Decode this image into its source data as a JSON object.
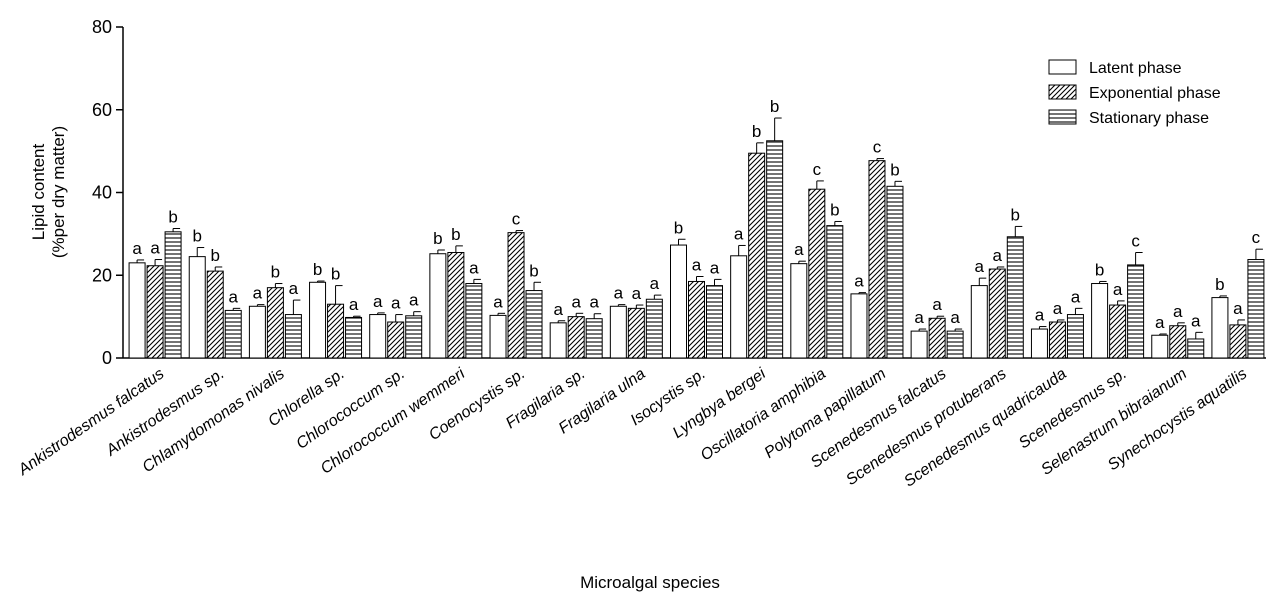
{
  "chart_data": {
    "type": "bar",
    "ylabel_line1": "Lipid content",
    "ylabel_line2": "(%per dry matter)",
    "xlabel": "Microalgal species",
    "ylim": [
      0,
      80
    ],
    "yticks": [
      "0",
      "20",
      "40",
      "60",
      "80"
    ],
    "legend_position": "top-right",
    "categories": [
      "Ankistrodesmus falcatus",
      "Ankistrodesmus  sp.",
      "Chlamydomonas nivalis",
      "Chlorella  sp.",
      "Chlorococcum  sp.",
      "Chlorococcum wemmeri",
      "Coenocystis  sp.",
      "Fragilaria  sp.",
      "Fragilaria ulna",
      "Isocystis  sp.",
      "Lyngbya bergei",
      "Oscillatoria amphibia",
      "Polytoma papillatum",
      "Scenedesmus falcatus",
      "Scenedesmus protuberans",
      "Scenedesmus quadricauda",
      "Scenedesmus  sp.",
      "Selenastrum bibraianum",
      "Synechocystis aquatilis"
    ],
    "series": [
      {
        "name": "Latent phase",
        "pattern": "blank",
        "values": [
          23.0,
          24.5,
          12.5,
          18.3,
          10.5,
          25.2,
          10.3,
          8.5,
          12.5,
          27.3,
          24.7,
          22.8,
          15.5,
          6.5,
          17.5,
          7.0,
          18.0,
          5.5,
          14.6
        ],
        "errors": [
          0.7,
          2.2,
          0.4,
          0.3,
          0.4,
          0.9,
          0.5,
          0.5,
          0.4,
          1.4,
          2.5,
          0.6,
          0.3,
          0.5,
          1.8,
          0.6,
          0.5,
          0.3,
          0.4
        ],
        "letters": [
          "a",
          "b",
          "a",
          "b",
          "a",
          "b",
          "a",
          "a",
          "a",
          "b",
          "a",
          "a",
          "a",
          "a",
          "a",
          "a",
          "b",
          "a",
          "b"
        ]
      },
      {
        "name": "Exponential phase",
        "pattern": "diagonal",
        "values": [
          22.3,
          21.0,
          17.0,
          13.0,
          8.7,
          25.5,
          30.3,
          10.0,
          12.0,
          18.5,
          49.5,
          40.8,
          47.7,
          9.6,
          21.5,
          8.7,
          12.8,
          7.8,
          8.0
        ],
        "errors": [
          1.5,
          1.0,
          1.0,
          4.5,
          1.8,
          1.6,
          0.5,
          0.8,
          0.8,
          1.2,
          2.5,
          2.0,
          0.5,
          0.5,
          0.5,
          0.5,
          1.0,
          0.7,
          1.2
        ],
        "letters": [
          "a",
          "b",
          "b",
          "b",
          "a",
          "b",
          "c",
          "a",
          "a",
          "a",
          "b",
          "c",
          "c",
          "a",
          "a",
          "a",
          "a",
          "a",
          "a"
        ]
      },
      {
        "name": "Stationary phase",
        "pattern": "horizontal",
        "values": [
          30.5,
          11.5,
          10.5,
          9.8,
          10.2,
          18.0,
          16.3,
          9.5,
          14.2,
          17.5,
          52.5,
          32.0,
          41.5,
          6.5,
          29.3,
          10.5,
          22.5,
          4.6,
          23.8
        ],
        "errors": [
          0.8,
          0.5,
          3.5,
          0.3,
          1.0,
          1.0,
          2.0,
          1.2,
          1.0,
          1.5,
          5.5,
          1.0,
          1.2,
          0.5,
          2.5,
          1.5,
          3.0,
          1.6,
          2.5
        ],
        "letters": [
          "b",
          "a",
          "a",
          "a",
          "a",
          "a",
          "b",
          "a",
          "a",
          "a",
          "b",
          "b",
          "b",
          "a",
          "b",
          "a",
          "c",
          "a",
          "c"
        ]
      }
    ]
  }
}
